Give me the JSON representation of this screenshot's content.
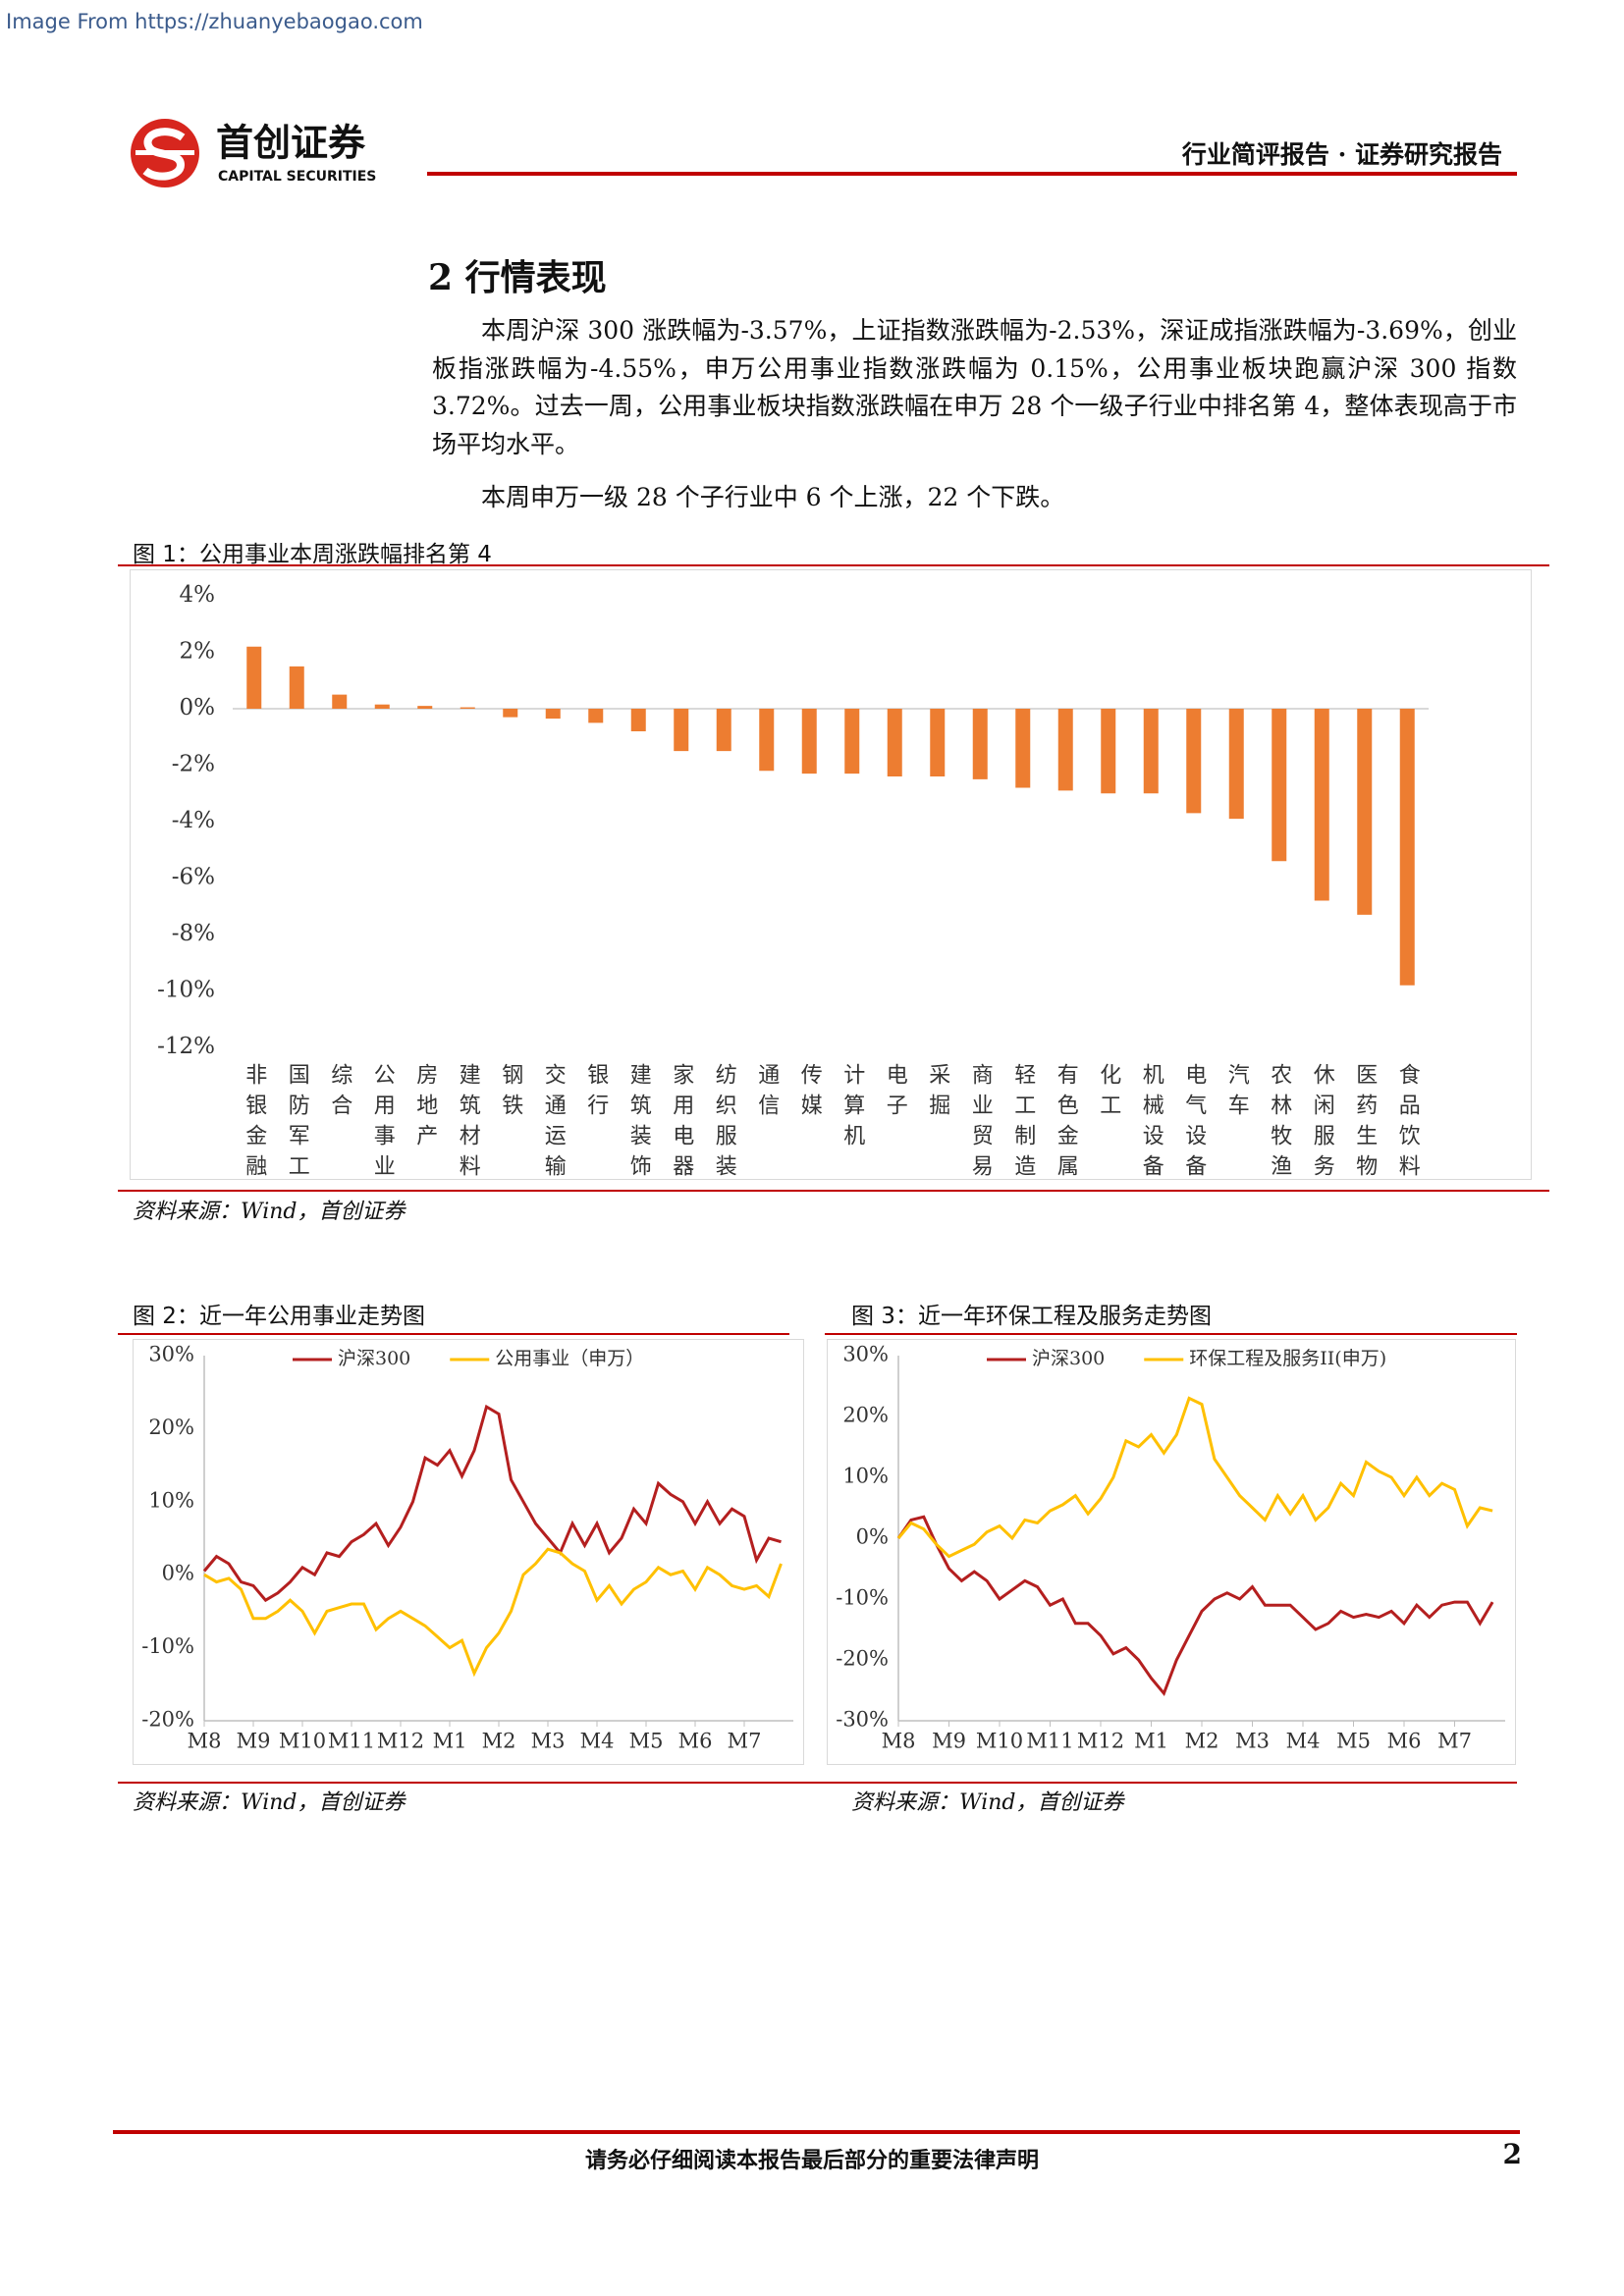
{
  "watermark": "Image From https://zhuanyebaogao.com",
  "header": {
    "logo_cn": "首创证券",
    "logo_en": "CAPITAL SECURITIES",
    "report_type": "行业简评报告 · 证券研究报告"
  },
  "section": {
    "title": "2 行情表现",
    "paragraphs": [
      "本周沪深 300 涨跌幅为-3.57%，上证指数涨跌幅为-2.53%，深证成指涨跌幅为-3.69%，创业板指涨跌幅为-4.55%，申万公用事业指数涨跌幅为 0.15%，公用事业板块跑赢沪深 300 指数 3.72%。过去一周，公用事业板块指数涨跌幅在申万 28 个一级子行业中排名第 4，整体表现高于市场平均水平。",
      "本周申万一级 28 个子行业中 6 个上涨，22 个下跌。"
    ]
  },
  "chart_data": [
    {
      "type": "bar",
      "title": "图 1：公用事业本周涨跌幅排名第 4",
      "source": "资料来源：Wind，首创证券",
      "categories": [
        "非银金融",
        "国防军工",
        "综合",
        "公用事业",
        "房地产",
        "建筑材料",
        "钢铁",
        "交通运输",
        "银行",
        "建筑装饰",
        "家用电器",
        "纺织服装",
        "通信",
        "传媒",
        "计算机",
        "电子",
        "采掘",
        "商业贸易",
        "轻工制造",
        "有色金属",
        "化工",
        "机械设备",
        "电气设备",
        "汽车",
        "农林牧渔",
        "休闲服务",
        "医药生物",
        "食品饮料"
      ],
      "values": [
        2.2,
        1.5,
        0.5,
        0.15,
        0.1,
        0.05,
        -0.3,
        -0.35,
        -0.5,
        -0.8,
        -1.5,
        -1.5,
        -2.2,
        -2.3,
        -2.3,
        -2.4,
        -2.4,
        -2.5,
        -2.8,
        -2.9,
        -3.0,
        -3.0,
        -3.7,
        -3.9,
        -5.4,
        -6.8,
        -7.3,
        -9.8
      ],
      "color": "#ed7d31",
      "ylim": [
        -12,
        4
      ],
      "yticks": [
        {
          "value": 4,
          "label": "4%"
        },
        {
          "value": 2,
          "label": "2%"
        },
        {
          "value": 0,
          "label": "0%"
        },
        {
          "value": -2,
          "label": "-2%"
        },
        {
          "value": -4,
          "label": "-4%"
        },
        {
          "value": -6,
          "label": "-6%"
        },
        {
          "value": -8,
          "label": "-8%"
        },
        {
          "value": -10,
          "label": "-10%"
        },
        {
          "value": -12,
          "label": "-12%"
        }
      ]
    },
    {
      "type": "line",
      "title": "图 2：近一年公用事业走势图",
      "source": "资料来源：Wind，首创证券",
      "x": [
        0,
        0.25,
        0.5,
        0.75,
        1,
        1.25,
        1.5,
        1.75,
        2,
        2.25,
        2.5,
        2.75,
        3,
        3.25,
        3.5,
        3.75,
        4,
        4.25,
        4.5,
        4.75,
        5,
        5.25,
        5.5,
        5.75,
        6,
        6.25,
        6.5,
        6.75,
        7,
        7.25,
        7.5,
        7.75,
        8,
        8.25,
        8.5,
        8.75,
        9,
        9.25,
        9.5,
        9.75,
        10,
        10.25,
        10.5,
        10.75,
        11,
        11.25,
        11.5,
        11.75
      ],
      "series": [
        {
          "name": "沪深300",
          "color": "#b41f1f",
          "values": [
            0.5,
            2.5,
            1.5,
            -1,
            -1.5,
            -3.5,
            -2.5,
            -1,
            1,
            0,
            3,
            2.5,
            4.5,
            5.5,
            7,
            4,
            6.5,
            10,
            16,
            15,
            17,
            13.5,
            17,
            23,
            22,
            13,
            10,
            7,
            5,
            3,
            7,
            4,
            7,
            3,
            5,
            9,
            7,
            12.5,
            11,
            10,
            7,
            10,
            7,
            9,
            8,
            2,
            5,
            4.5
          ]
        },
        {
          "name": "公用事业（申万）",
          "color": "#ffc000",
          "values": [
            0,
            -1,
            -0.5,
            -2,
            -6,
            -6,
            -5,
            -3.5,
            -5,
            -8,
            -5,
            -4.5,
            -4,
            -4,
            -7.5,
            -6,
            -5,
            -6,
            -7,
            -8.5,
            -10,
            -9,
            -13.5,
            -10,
            -8,
            -5,
            0,
            1.5,
            3.5,
            3,
            1.5,
            0.5,
            -3.5,
            -1.5,
            -4,
            -2,
            -1,
            1,
            0,
            0.5,
            -2,
            1,
            0,
            -1.5,
            -2,
            -1.5,
            -3,
            1.5
          ]
        }
      ],
      "xlim": [
        0,
        12
      ],
      "xticks": [
        {
          "value": 0,
          "label": "M8"
        },
        {
          "value": 1,
          "label": "M9"
        },
        {
          "value": 2,
          "label": "M10"
        },
        {
          "value": 3,
          "label": "M11"
        },
        {
          "value": 4,
          "label": "M12"
        },
        {
          "value": 5,
          "label": "M1"
        },
        {
          "value": 6,
          "label": "M2"
        },
        {
          "value": 7,
          "label": "M3"
        },
        {
          "value": 8,
          "label": "M4"
        },
        {
          "value": 9,
          "label": "M5"
        },
        {
          "value": 10,
          "label": "M6"
        },
        {
          "value": 11,
          "label": "M7"
        }
      ],
      "ylim": [
        -20,
        30
      ],
      "yticks": [
        {
          "value": 30,
          "label": "30%"
        },
        {
          "value": 20,
          "label": "20%"
        },
        {
          "value": 10,
          "label": "10%"
        },
        {
          "value": 0,
          "label": "0%"
        },
        {
          "value": -10,
          "label": "-10%"
        },
        {
          "value": -20,
          "label": "-20%"
        }
      ]
    },
    {
      "type": "line",
      "title": "图 3：近一年环保工程及服务走势图",
      "source": "资料来源：Wind，首创证券",
      "x": [
        0,
        0.25,
        0.5,
        0.75,
        1,
        1.25,
        1.5,
        1.75,
        2,
        2.25,
        2.5,
        2.75,
        3,
        3.25,
        3.5,
        3.75,
        4,
        4.25,
        4.5,
        4.75,
        5,
        5.25,
        5.5,
        5.75,
        6,
        6.25,
        6.5,
        6.75,
        7,
        7.25,
        7.5,
        7.75,
        8,
        8.25,
        8.5,
        8.75,
        9,
        9.25,
        9.5,
        9.75,
        10,
        10.25,
        10.5,
        10.75,
        11,
        11.25,
        11.5,
        11.75
      ],
      "series": [
        {
          "name": "沪深300",
          "color": "#b41f1f",
          "values": [
            0,
            3,
            3.5,
            -1,
            -5,
            -7,
            -5.5,
            -7,
            -10,
            -8.5,
            -7,
            -8,
            -11,
            -10,
            -14,
            -14,
            -16,
            -19,
            -18,
            -20,
            -23,
            -25.5,
            -20,
            -16,
            -12,
            -10,
            -9,
            -10,
            -8,
            -11,
            -11,
            -11,
            -13,
            -15,
            -14,
            -12,
            -13,
            -12.5,
            -13,
            -12,
            -14,
            -11,
            -13,
            -11,
            -10.5,
            -10.5,
            -14,
            -10.5
          ]
        },
        {
          "name": "环保工程及服务II(申万)",
          "color": "#ffc000",
          "values": [
            0,
            2.5,
            1.5,
            -1,
            -3,
            -2,
            -1,
            1,
            2,
            0,
            3,
            2.5,
            4.5,
            5.5,
            7,
            4,
            6.5,
            10,
            16,
            15,
            17,
            14,
            17,
            23,
            22,
            13,
            10,
            7,
            5,
            3,
            7,
            4,
            7,
            3,
            5,
            9,
            7,
            12.5,
            11,
            10,
            7,
            10,
            7,
            9,
            8,
            2,
            5,
            4.5
          ]
        }
      ],
      "xlim": [
        0,
        12
      ],
      "xticks": [
        {
          "value": 0,
          "label": "M8"
        },
        {
          "value": 1,
          "label": "M9"
        },
        {
          "value": 2,
          "label": "M10"
        },
        {
          "value": 3,
          "label": "M11"
        },
        {
          "value": 4,
          "label": "M12"
        },
        {
          "value": 5,
          "label": "M1"
        },
        {
          "value": 6,
          "label": "M2"
        },
        {
          "value": 7,
          "label": "M3"
        },
        {
          "value": 8,
          "label": "M4"
        },
        {
          "value": 9,
          "label": "M5"
        },
        {
          "value": 10,
          "label": "M6"
        },
        {
          "value": 11,
          "label": "M7"
        }
      ],
      "ylim": [
        -30,
        30
      ],
      "yticks": [
        {
          "value": 30,
          "label": "30%"
        },
        {
          "value": 20,
          "label": "20%"
        },
        {
          "value": 10,
          "label": "10%"
        },
        {
          "value": 0,
          "label": "0%"
        },
        {
          "value": -10,
          "label": "-10%"
        },
        {
          "value": -20,
          "label": "-20%"
        },
        {
          "value": -30,
          "label": "-30%"
        }
      ]
    }
  ],
  "footer": {
    "disclaimer": "请务必仔细阅读本报告最后部分的重要法律声明",
    "page": 2
  }
}
